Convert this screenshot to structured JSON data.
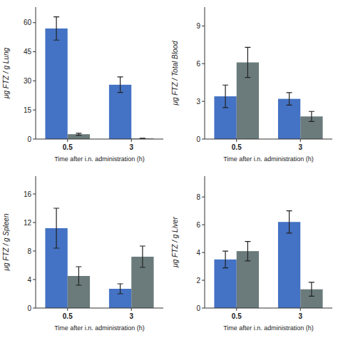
{
  "chart_data": [
    {
      "type": "bar",
      "ylabel": "μg FTZ / g Lung",
      "xlabel": "Time after i.n. administration (h)",
      "categories": [
        "0.5",
        "3"
      ],
      "series": [
        {
          "color": "#4472C4",
          "values": [
            57.0,
            28.0
          ],
          "errors": [
            6.0,
            4.0
          ]
        },
        {
          "color": "#6B7B7B",
          "values": [
            2.5,
            0.3
          ],
          "errors": [
            0.5,
            0.15
          ]
        }
      ],
      "ylim": [
        0,
        68
      ],
      "yticks": [
        0,
        15,
        30,
        45,
        60
      ]
    },
    {
      "type": "bar",
      "ylabel": "μg FTZ / Total Blood",
      "xlabel": "Time after i.n. administration (h)",
      "categories": [
        "0.5",
        "3"
      ],
      "series": [
        {
          "color": "#4472C4",
          "values": [
            3.4,
            3.2
          ],
          "errors": [
            0.9,
            0.5
          ]
        },
        {
          "color": "#6B7B7B",
          "values": [
            6.1,
            1.8
          ],
          "errors": [
            1.2,
            0.4
          ]
        }
      ],
      "ylim": [
        0,
        10.5
      ],
      "yticks": [
        0,
        3,
        6,
        9
      ]
    },
    {
      "type": "bar",
      "ylabel": "μg FTZ / g Spleen",
      "xlabel": "Time after i.n. administration (h)",
      "categories": [
        "0.5",
        "3"
      ],
      "series": [
        {
          "color": "#4472C4",
          "values": [
            11.2,
            2.7
          ],
          "errors": [
            2.8,
            0.7
          ]
        },
        {
          "color": "#6B7B7B",
          "values": [
            4.5,
            7.2
          ],
          "errors": [
            1.3,
            1.5
          ]
        }
      ],
      "ylim": [
        0,
        18.5
      ],
      "yticks": [
        0,
        4,
        8,
        12,
        16
      ]
    },
    {
      "type": "bar",
      "ylabel": "μg FTZ / g Liver",
      "xlabel": "Time after i.n. administration (h)",
      "categories": [
        "0.5",
        "3"
      ],
      "series": [
        {
          "color": "#4472C4",
          "values": [
            3.5,
            6.2
          ],
          "errors": [
            0.6,
            0.8
          ]
        },
        {
          "color": "#6B7B7B",
          "values": [
            4.1,
            1.35
          ],
          "errors": [
            0.7,
            0.5
          ]
        }
      ],
      "ylim": [
        0,
        9.5
      ],
      "yticks": [
        0,
        2,
        4,
        6,
        8
      ]
    }
  ]
}
